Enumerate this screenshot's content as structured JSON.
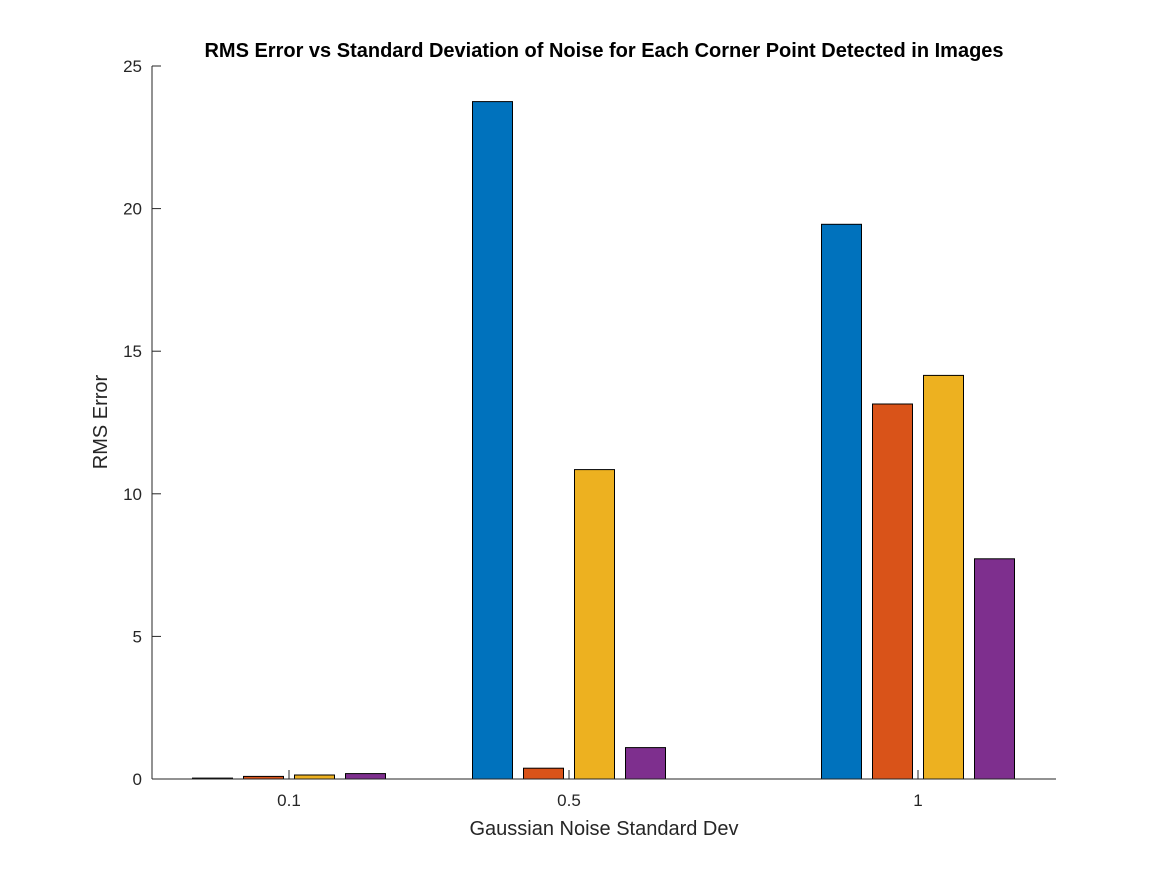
{
  "chart_data": {
    "type": "bar",
    "title": "RMS Error vs Standard Deviation of Noise for Each Corner Point Detected in Images",
    "xlabel": "Gaussian Noise Standard Dev",
    "ylabel": "RMS Error",
    "categories": [
      "0.1",
      "0.5",
      "1"
    ],
    "ylim": [
      0,
      25
    ],
    "yticks": [
      "0",
      "5",
      "10",
      "15",
      "20",
      "25"
    ],
    "grid": false,
    "legend": "none",
    "series": [
      {
        "color": "#0072BD",
        "values": [
          0.03,
          23.75,
          19.45
        ]
      },
      {
        "color": "#D95319",
        "values": [
          0.09,
          0.38,
          13.15
        ]
      },
      {
        "color": "#EDB120",
        "values": [
          0.14,
          10.85,
          14.15
        ]
      },
      {
        "color": "#7E2F8E",
        "values": [
          0.19,
          1.1,
          7.72
        ]
      }
    ]
  }
}
